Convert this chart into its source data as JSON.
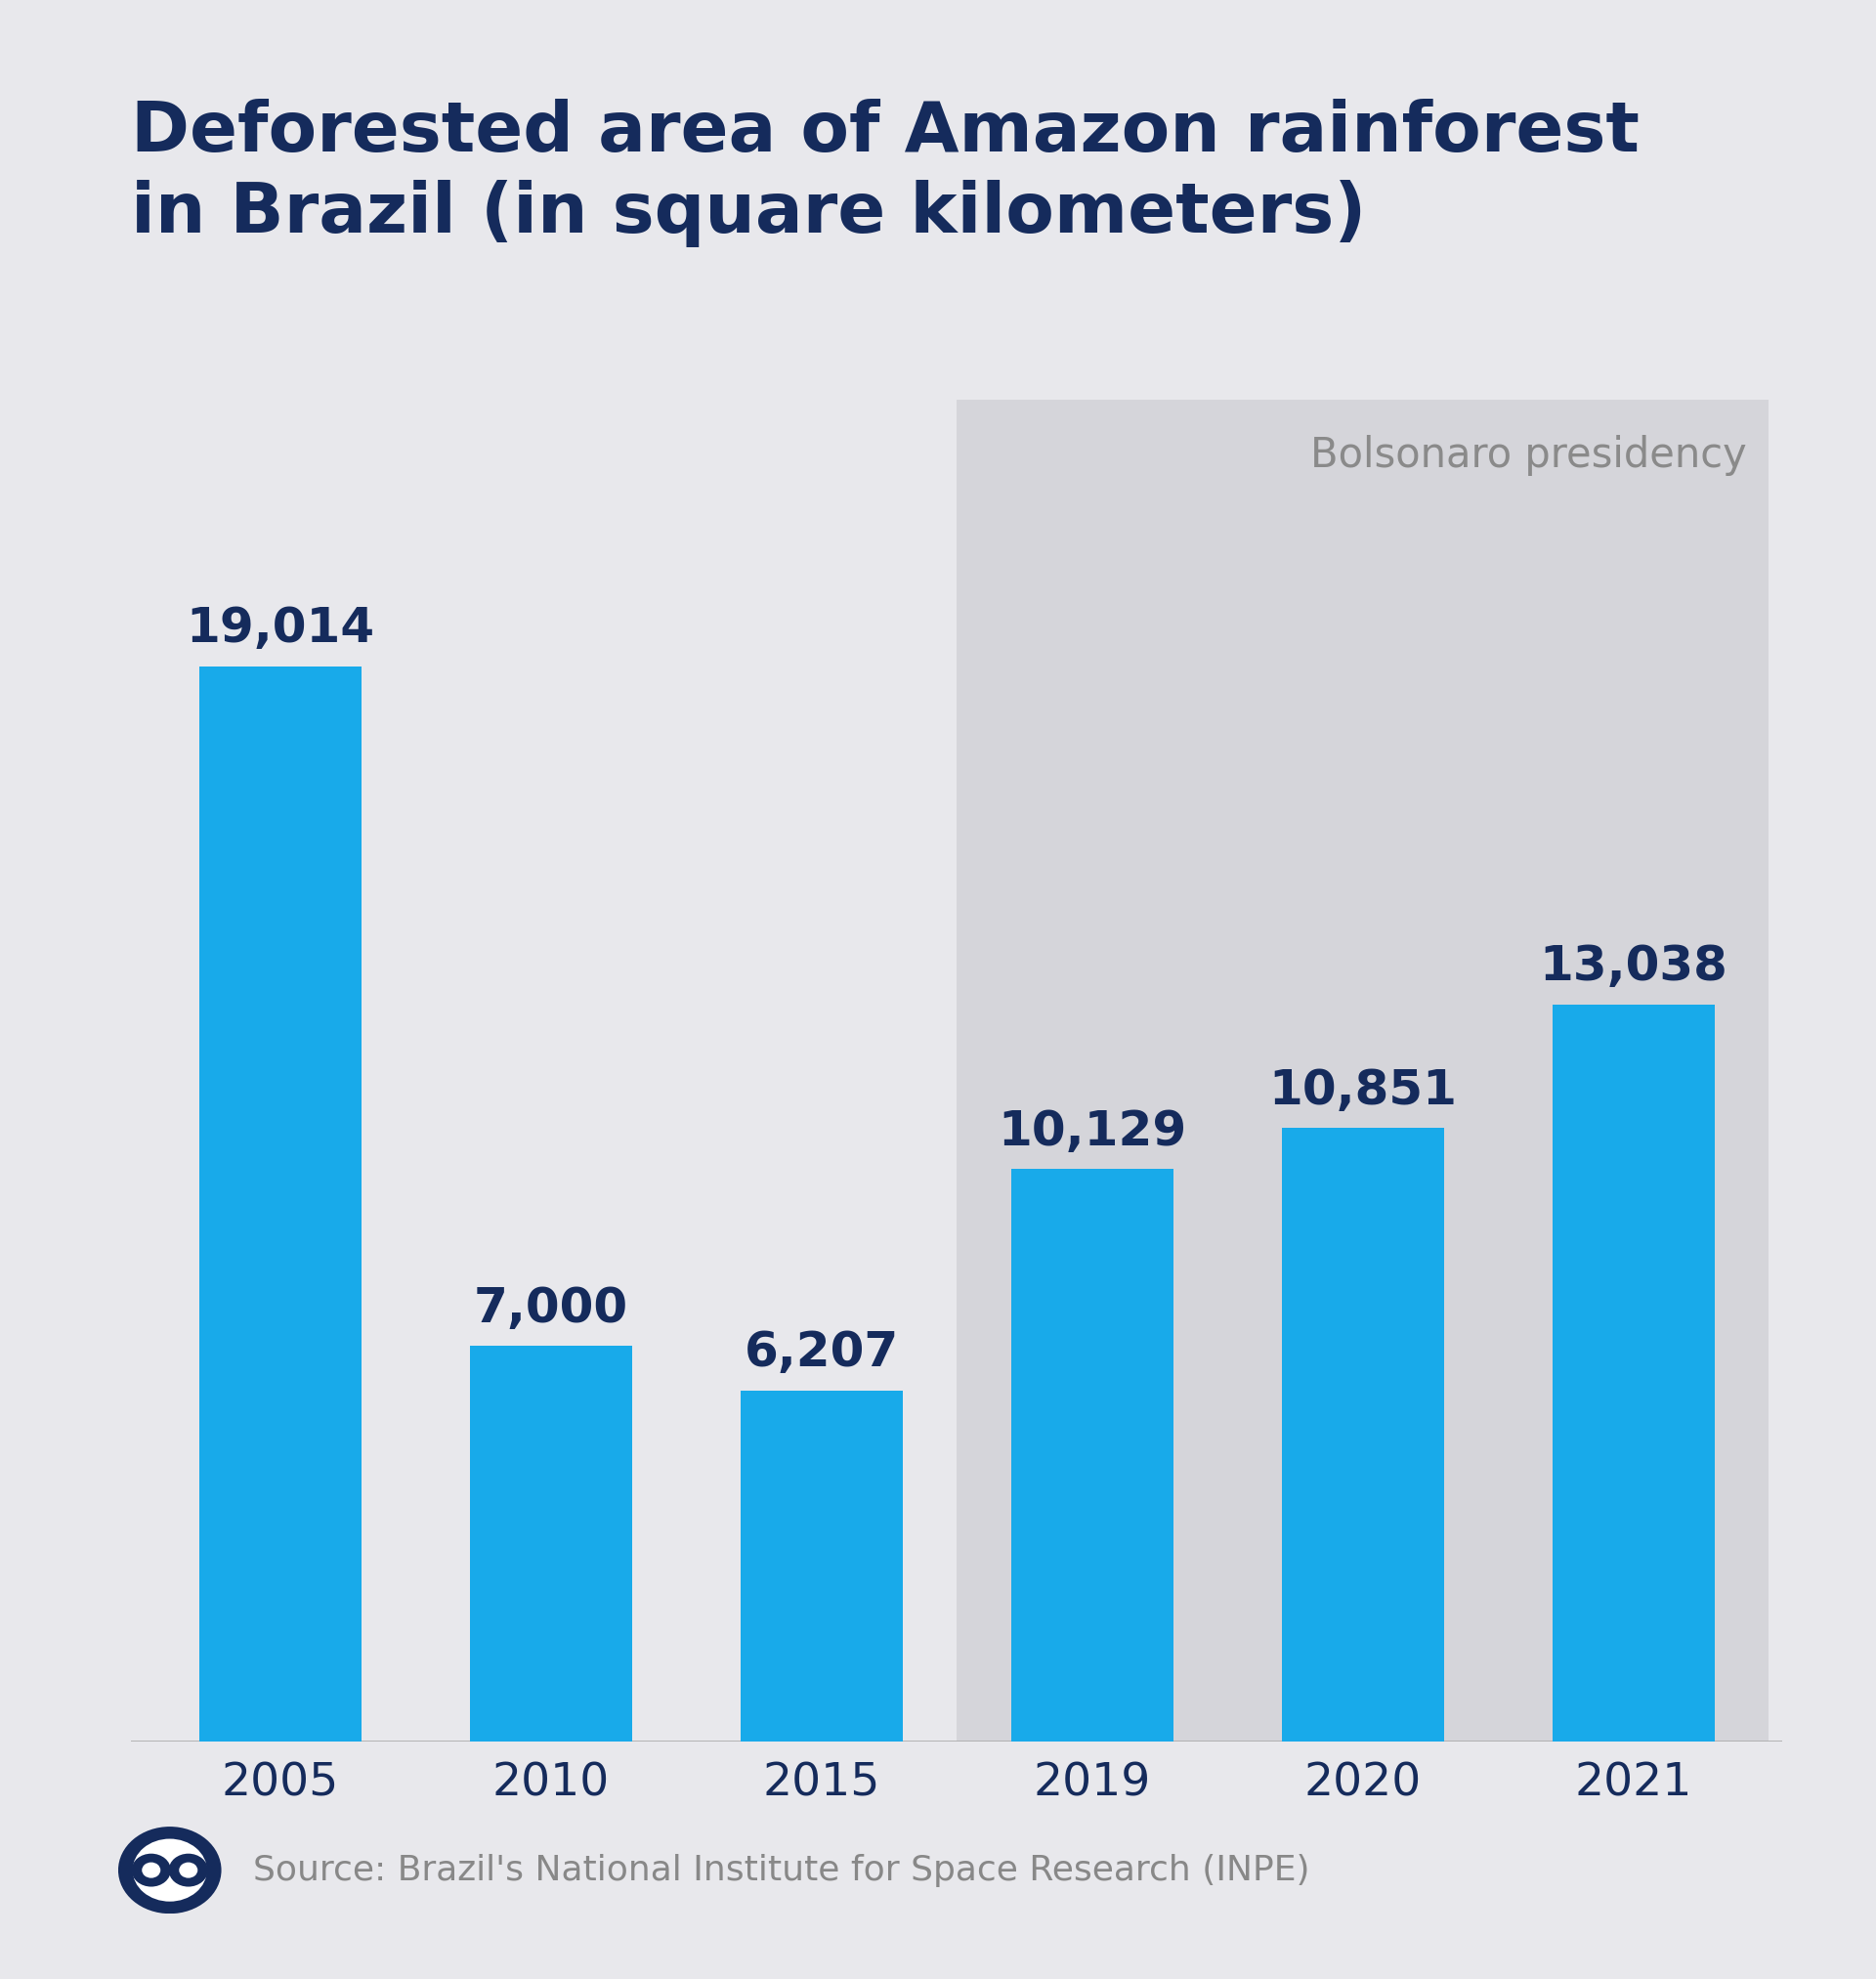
{
  "title_line1": "Deforested area of Amazon rainforest",
  "title_line2": "in Brazil (in square kilometers)",
  "categories": [
    "2005",
    "2010",
    "2015",
    "2019",
    "2020",
    "2021"
  ],
  "values": [
    19014,
    7000,
    6207,
    10129,
    10851,
    13038
  ],
  "labels": [
    "19,014",
    "7,000",
    "6,207",
    "10,129",
    "10,851",
    "13,038"
  ],
  "bar_color": "#18AAEA",
  "background_color": "#E8E8EC",
  "title_color": "#152B5C",
  "label_color": "#152B5C",
  "xtick_color": "#152B5C",
  "bolsonaro_bg": "#D5D5DA",
  "bolsonaro_text": "#8A8A8A",
  "bolsonaro_label": "Bolsonaro presidency",
  "source_text": "Source: Brazil's National Institute for Space Research (INPE)",
  "dw_color": "#152B5C",
  "ylim_max": 21000,
  "title_fontsize": 52,
  "label_fontsize": 36,
  "xtick_fontsize": 34,
  "source_fontsize": 26,
  "bolsonaro_fontsize": 30
}
